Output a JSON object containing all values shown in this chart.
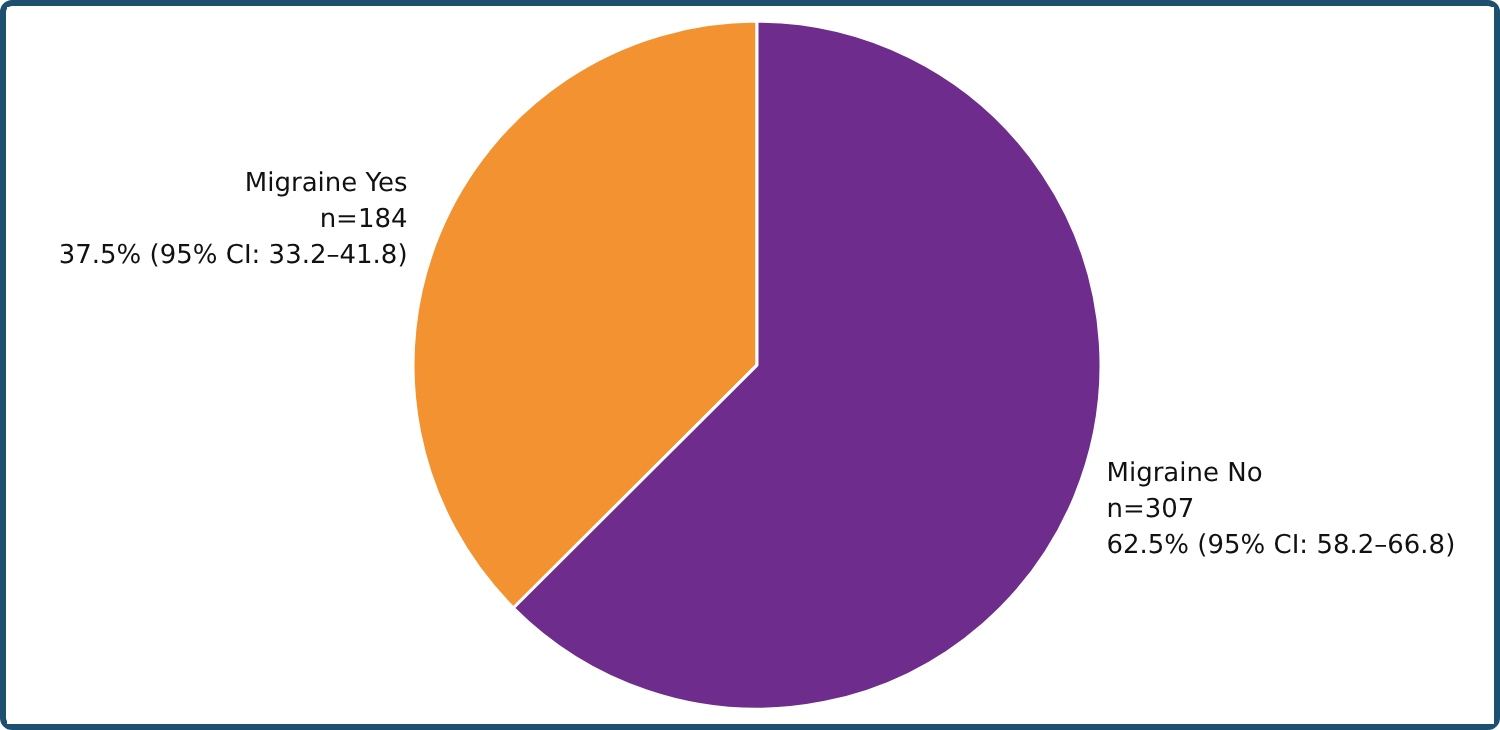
{
  "chart_data": {
    "type": "pie",
    "categories": [
      "Migraine Yes",
      "Migraine No"
    ],
    "values": [
      184,
      307
    ],
    "colors": [
      "#f39230",
      "#6e2c8c"
    ],
    "value_labels": [
      "n=184\n37.5% (95% CI: 33.2–41.8)",
      "n=307\n62.5% (95% CI: 58.2–66.8)"
    ]
  }
}
